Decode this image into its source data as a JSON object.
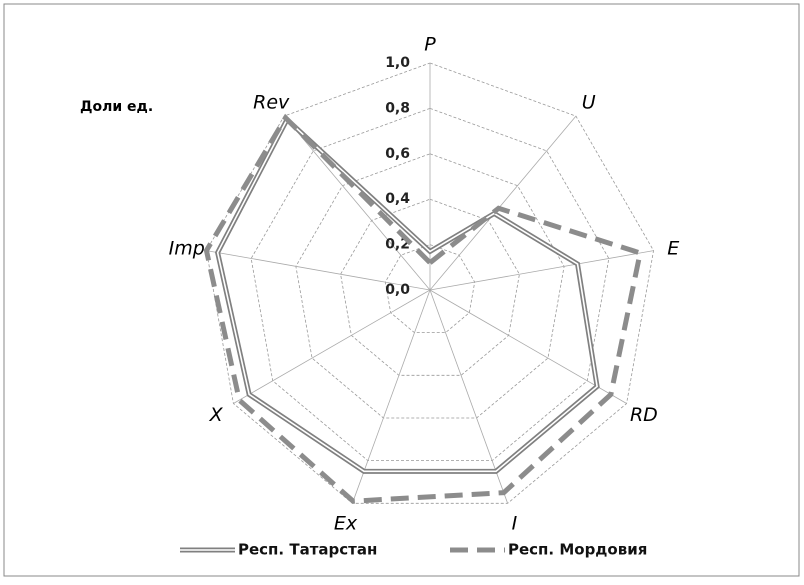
{
  "chart_data": {
    "type": "radar",
    "y_label": "Доли ед.",
    "categories": [
      "P",
      "U",
      "E",
      "RD",
      "I",
      "Ex",
      "X",
      "Imp",
      "Rev"
    ],
    "series": [
      {
        "name": "Респ. Татарстан",
        "color": "#808080",
        "values": [
          0.17,
          0.44,
          0.66,
          0.85,
          0.85,
          0.85,
          0.92,
          0.95,
          0.98
        ]
      },
      {
        "name": "Респ. Мордовия",
        "color": "#8c8c8c",
        "values": [
          0.12,
          0.47,
          0.94,
          0.92,
          0.95,
          0.99,
          0.97,
          1.0,
          0.99
        ]
      }
    ],
    "ylim": [
      0,
      1
    ],
    "yticks": [
      {
        "value": 0,
        "label": "0,0"
      },
      {
        "value": 0.2,
        "label": "0,2"
      },
      {
        "value": 0.4,
        "label": "0,4"
      },
      {
        "value": 0.6,
        "label": "0,6"
      },
      {
        "value": 0.8,
        "label": "0,8"
      },
      {
        "value": 1,
        "label": "1,0"
      }
    ],
    "grid": true
  }
}
